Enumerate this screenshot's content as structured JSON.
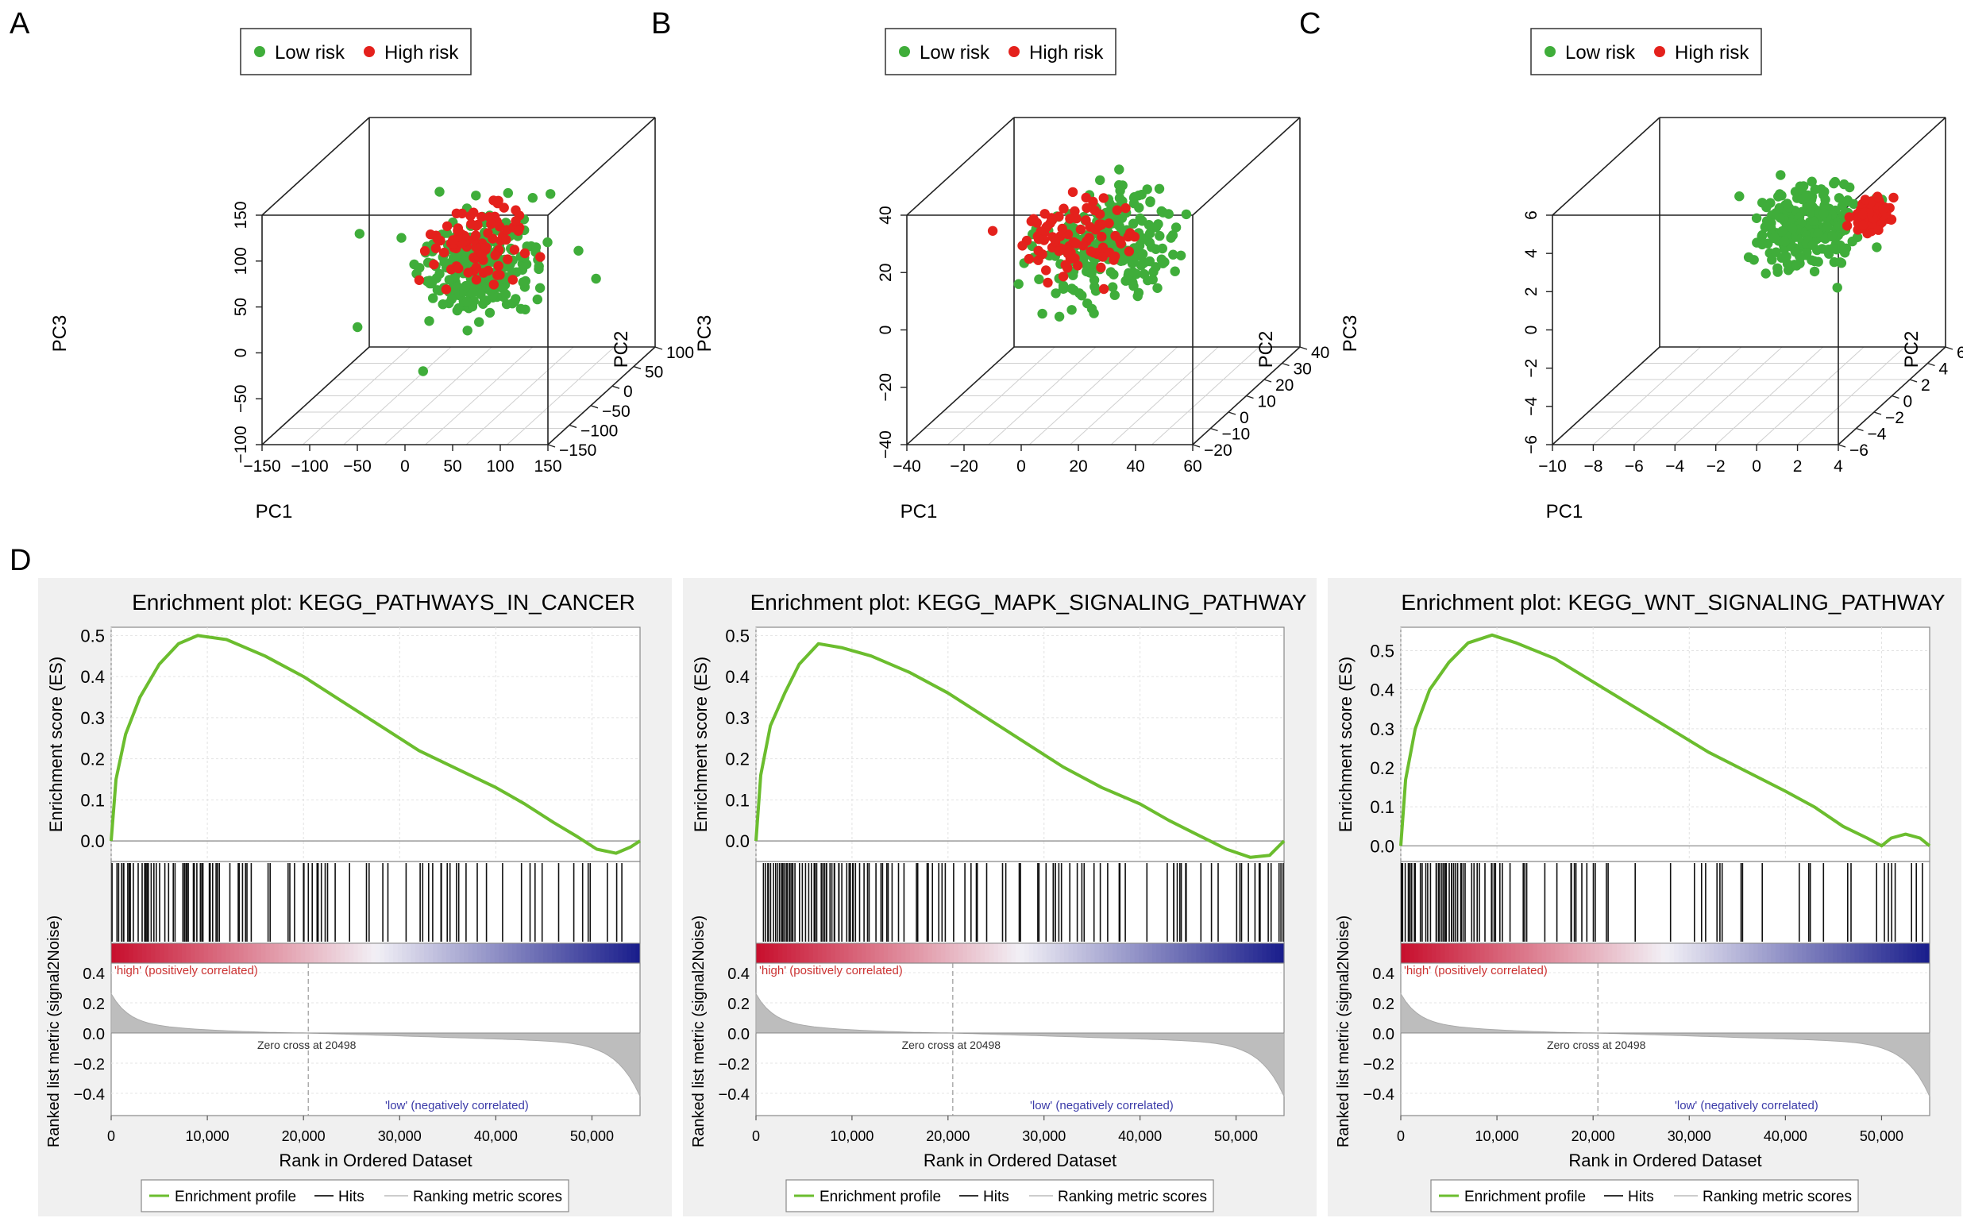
{
  "panel_labels": [
    "A",
    "B",
    "C",
    "D"
  ],
  "colors": {
    "low_risk": "#3fad3a",
    "high_risk": "#e4211c",
    "es_line": "#6bbd2e",
    "hits": "#111111",
    "metric_fill": "#bdbdbd",
    "plot_bg": "#f0f0f0",
    "red_end": "#c8102e",
    "blue_end": "#1a1e8c",
    "high_label": "#cc3333",
    "low_label": "#3a3aa8"
  },
  "legend_3d": {
    "low": "Low risk",
    "high": "High risk"
  },
  "axis_labels": {
    "pc1": "PC1",
    "pc2": "PC2",
    "pc3": "PC3"
  },
  "chart_data": [
    {
      "type": "scatter",
      "panel": "A",
      "xlabel": "PC1",
      "ylabel": "PC2",
      "zlabel": "PC3",
      "x_ticks": [
        "−150",
        "−100",
        "−50",
        "0",
        "50",
        "100",
        "150"
      ],
      "y_ticks": [
        "−150",
        "−100",
        "−50",
        "0",
        "50",
        "100"
      ],
      "z_ticks": [
        "−100",
        "−50",
        "0",
        "50",
        "100",
        "150"
      ],
      "xlim": [
        -150,
        150
      ],
      "ylim": [
        -150,
        100
      ],
      "zlim": [
        -100,
        150
      ],
      "series": [
        {
          "name": "Low risk",
          "center": [
            20,
            -20,
            40
          ],
          "spread": [
            30,
            30,
            25
          ],
          "count": 260
        },
        {
          "name": "High risk",
          "center": [
            10,
            -10,
            60
          ],
          "spread": [
            30,
            30,
            20
          ],
          "count": 90
        }
      ]
    },
    {
      "type": "scatter",
      "panel": "B",
      "xlabel": "PC1",
      "ylabel": "PC2",
      "zlabel": "PC3",
      "x_ticks": [
        "−40",
        "−20",
        "0",
        "20",
        "40",
        "60"
      ],
      "y_ticks": [
        "−20",
        "−10",
        "0",
        "10",
        "20",
        "30",
        "40"
      ],
      "z_ticks": [
        "−40",
        "−20",
        "0",
        "20",
        "40"
      ],
      "xlim": [
        -40,
        60
      ],
      "ylim": [
        -20,
        40
      ],
      "zlim": [
        -40,
        40
      ],
      "series": [
        {
          "name": "Low risk",
          "center": [
            15,
            5,
            15
          ],
          "spread": [
            10,
            8,
            8
          ],
          "count": 260
        },
        {
          "name": "High risk",
          "center": [
            2,
            5,
            18
          ],
          "spread": [
            8,
            6,
            6
          ],
          "count": 90
        }
      ]
    },
    {
      "type": "scatter",
      "panel": "C",
      "xlabel": "PC1",
      "ylabel": "PC2",
      "zlabel": "PC3",
      "x_ticks": [
        "−10",
        "−8",
        "−6",
        "−4",
        "−2",
        "0",
        "2",
        "4"
      ],
      "y_ticks": [
        "−6",
        "−4",
        "−2",
        "0",
        "2",
        "4",
        "6"
      ],
      "z_ticks": [
        "−6",
        "−4",
        "−2",
        "0",
        "2",
        "4",
        "6"
      ],
      "xlim": [
        -10,
        4
      ],
      "ylim": [
        -6,
        6
      ],
      "zlim": [
        -6,
        6
      ],
      "series": [
        {
          "name": "Low risk",
          "center": [
            -1,
            2,
            2
          ],
          "spread": [
            1.2,
            1.0,
            1.0
          ],
          "count": 240
        },
        {
          "name": "High risk",
          "center": [
            2.2,
            2,
            2.6
          ],
          "spread": [
            0.35,
            0.4,
            0.35
          ],
          "count": 140
        }
      ]
    },
    {
      "type": "line",
      "panel": "D1",
      "title": "Enrichment plot: KEGG_PATHWAYS_IN_CANCER",
      "ylabel": "Enrichment score (ES)",
      "es_ticks": [
        0.0,
        0.1,
        0.2,
        0.3,
        0.4,
        0.5
      ],
      "es_ylim": [
        -0.05,
        0.52
      ],
      "x": [
        0,
        500,
        1500,
        3000,
        5000,
        7000,
        9000,
        12000,
        16000,
        20000,
        24000,
        28000,
        32000,
        36000,
        40000,
        43000,
        46000,
        48500,
        50500,
        52500,
        54000,
        55000
      ],
      "es": [
        0.0,
        0.15,
        0.26,
        0.35,
        0.43,
        0.48,
        0.5,
        0.49,
        0.45,
        0.4,
        0.34,
        0.28,
        0.22,
        0.175,
        0.13,
        0.09,
        0.045,
        0.01,
        -0.02,
        -0.03,
        -0.015,
        0.0
      ],
      "hit_density": [
        [
          0,
          12000,
          0.65
        ],
        [
          12000,
          22000,
          0.28
        ],
        [
          22000,
          42000,
          0.18
        ],
        [
          42000,
          55000,
          0.1
        ]
      ]
    },
    {
      "type": "line",
      "panel": "D2",
      "title": "Enrichment plot: KEGG_MAPK_SIGNALING_PATHWAY",
      "ylabel": "Enrichment score (ES)",
      "es_ticks": [
        0.0,
        0.1,
        0.2,
        0.3,
        0.4,
        0.5
      ],
      "es_ylim": [
        -0.05,
        0.52
      ],
      "x": [
        0,
        500,
        1500,
        3000,
        4500,
        6500,
        9000,
        12000,
        16000,
        20000,
        24000,
        28000,
        32000,
        36000,
        40000,
        43000,
        46000,
        49000,
        51500,
        53500,
        55000
      ],
      "es": [
        0.0,
        0.16,
        0.28,
        0.36,
        0.43,
        0.48,
        0.47,
        0.45,
        0.41,
        0.36,
        0.3,
        0.24,
        0.18,
        0.13,
        0.09,
        0.05,
        0.015,
        -0.02,
        -0.04,
        -0.035,
        0.0
      ],
      "hit_density": [
        [
          0,
          11000,
          0.7
        ],
        [
          11000,
          18000,
          0.35
        ],
        [
          18000,
          40000,
          0.2
        ],
        [
          40000,
          55000,
          0.22
        ]
      ]
    },
    {
      "type": "line",
      "panel": "D3",
      "title": "Enrichment plot: KEGG_WNT_SIGNALING_PATHWAY",
      "ylabel": "Enrichment score (ES)",
      "es_ticks": [
        0.0,
        0.1,
        0.2,
        0.3,
        0.4,
        0.5
      ],
      "es_ylim": [
        -0.04,
        0.56
      ],
      "x": [
        0,
        500,
        1500,
        3000,
        5000,
        7000,
        9500,
        12000,
        16000,
        20000,
        24000,
        28000,
        32000,
        36000,
        40000,
        43000,
        46000,
        48500,
        50000,
        51000,
        52500,
        54000,
        55000
      ],
      "es": [
        0.0,
        0.17,
        0.3,
        0.4,
        0.47,
        0.52,
        0.54,
        0.52,
        0.48,
        0.42,
        0.36,
        0.3,
        0.24,
        0.19,
        0.14,
        0.1,
        0.05,
        0.02,
        0.0,
        0.02,
        0.03,
        0.02,
        0.0
      ],
      "hit_density": [
        [
          0,
          11000,
          0.65
        ],
        [
          11000,
          20000,
          0.3
        ],
        [
          20000,
          40000,
          0.12
        ],
        [
          40000,
          55000,
          0.18
        ]
      ]
    }
  ],
  "gsea_common": {
    "metric_ylabel": "Ranked list metric (signal2Noise)",
    "metric_ticks": [
      "0.4",
      "0.2",
      "0.0",
      "−0.2",
      "−0.4"
    ],
    "x_ticks": [
      "0",
      "10,000",
      "20,000",
      "30,000",
      "40,000",
      "50,000"
    ],
    "xlim": [
      0,
      55000
    ],
    "xlabel": "Rank in Ordered Dataset",
    "zero_cross": "Zero cross at 20498",
    "zero_cross_rank": 20498,
    "high_label": "'high' (positively correlated)",
    "low_label": "'low' (negatively correlated)",
    "legend": [
      "Enrichment profile",
      "Hits",
      "Ranking metric scores"
    ]
  }
}
